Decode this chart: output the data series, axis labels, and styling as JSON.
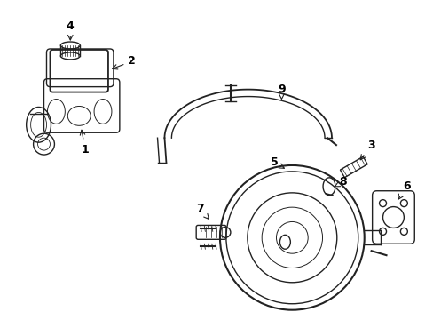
{
  "background_color": "#ffffff",
  "line_color": "#222222",
  "label_color": "#000000",
  "lw": 1.0,
  "figsize": [
    4.89,
    3.6
  ],
  "dpi": 100
}
